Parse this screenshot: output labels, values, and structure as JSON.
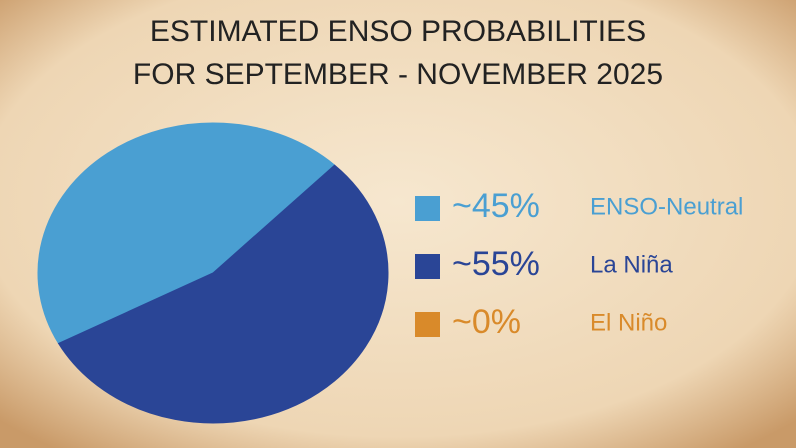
{
  "chart_data": {
    "type": "pie",
    "title": [
      "ESTIMATED ENSO PROBABILITIES",
      "FOR SEPTEMBER - NOVEMBER 2025"
    ],
    "categories": [
      "ENSO-Neutral",
      "La Niña",
      "El Niño"
    ],
    "values": [
      45,
      55,
      0
    ],
    "value_labels": [
      "~45%",
      "~55%",
      "~0%"
    ],
    "colors": [
      "#4a9fd2",
      "#2a4596",
      "#d98a2a"
    ]
  }
}
